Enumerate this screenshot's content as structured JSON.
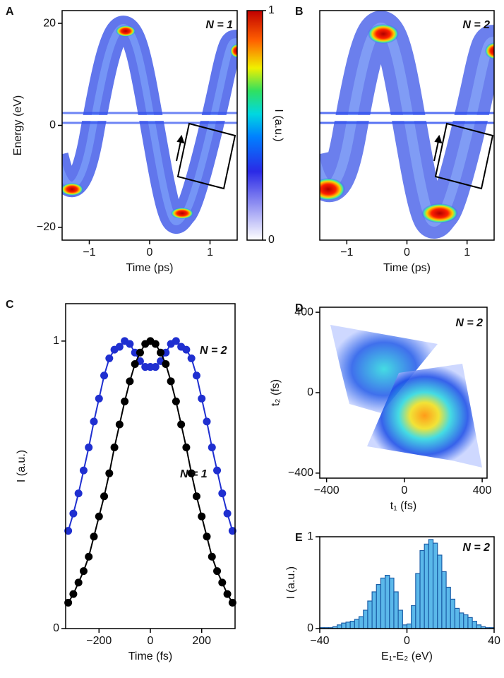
{
  "chart_data": [
    {
      "type": "heatmap",
      "panel": "A",
      "annotation": "N = 1",
      "x_label": "Time (ps)",
      "y_label": "Energy (eV)",
      "xlim": [
        -1.45,
        1.45
      ],
      "xticks": [
        {
          "value": -1,
          "label": "−1"
        },
        0,
        1
      ],
      "ylim": [
        -22.5,
        22.5
      ],
      "yticks": [
        {
          "value": -20,
          "label": "−20"
        },
        0,
        20
      ],
      "colorbar": {
        "label": "I (a.u.)",
        "lim": [
          0,
          1
        ],
        "ticks": [
          0,
          1
        ]
      }
    },
    {
      "type": "heatmap",
      "panel": "B",
      "annotation": "N = 2",
      "x_label": "Time (ps)",
      "xlim": [
        -1.45,
        1.45
      ],
      "xticks": [
        {
          "value": -1,
          "label": "−1"
        },
        0,
        1
      ],
      "ylim": [
        -22.5,
        22.5
      ]
    },
    {
      "type": "line",
      "panel": "C",
      "x_label": "Time (fs)",
      "y_label": "I (a.u.)",
      "xlim": [
        -330,
        330
      ],
      "xticks": [
        {
          "value": -200,
          "label": "−200"
        },
        0,
        200
      ],
      "ylim": [
        0,
        1.13
      ],
      "yticks": [
        0,
        1
      ],
      "x": [
        -320,
        -300,
        -280,
        -260,
        -240,
        -220,
        -200,
        -180,
        -160,
        -140,
        -120,
        -100,
        -80,
        -60,
        -40,
        -20,
        0,
        20,
        40,
        60,
        80,
        100,
        120,
        140,
        160,
        180,
        200,
        220,
        240,
        260,
        280,
        300,
        320
      ],
      "series": [
        {
          "name": "N = 2",
          "color": "#1f2fd0",
          "values": [
            0.34,
            0.4,
            0.47,
            0.55,
            0.63,
            0.72,
            0.8,
            0.88,
            0.94,
            0.97,
            0.98,
            1.0,
            0.99,
            0.96,
            0.93,
            0.91,
            0.91,
            0.91,
            0.93,
            0.96,
            0.99,
            1.0,
            0.98,
            0.97,
            0.94,
            0.88,
            0.8,
            0.72,
            0.63,
            0.55,
            0.47,
            0.4,
            0.34
          ]
        },
        {
          "name": "N = 1",
          "color": "#000000",
          "values": [
            0.09,
            0.12,
            0.16,
            0.2,
            0.25,
            0.32,
            0.39,
            0.46,
            0.54,
            0.63,
            0.71,
            0.79,
            0.86,
            0.92,
            0.96,
            0.99,
            1.0,
            0.99,
            0.96,
            0.92,
            0.86,
            0.79,
            0.71,
            0.63,
            0.54,
            0.46,
            0.39,
            0.32,
            0.25,
            0.2,
            0.16,
            0.12,
            0.09
          ]
        }
      ]
    },
    {
      "type": "heatmap",
      "panel": "D",
      "annotation": "N = 2",
      "x_label": "t₁ (fs)",
      "y_label": "t₂ (fs)",
      "xlim": [
        -435,
        425
      ],
      "xticks": [
        {
          "value": -400,
          "label": "−400"
        },
        0,
        400
      ],
      "ylim": [
        -425,
        425
      ],
      "yticks": [
        {
          "value": -400,
          "label": "−400"
        },
        0,
        400
      ]
    },
    {
      "type": "histogram",
      "panel": "E",
      "annotation": "N = 2",
      "x_label": "E₁-E₂ (eV)",
      "y_label": "I (a.u.)",
      "xlim": [
        -40,
        40
      ],
      "xticks": [
        {
          "value": -40,
          "label": "−40"
        },
        0,
        40
      ],
      "ylim": [
        0,
        1
      ],
      "yticks": [
        0,
        1
      ],
      "bins": [
        -40,
        -38,
        -36,
        -34,
        -32,
        -30,
        -28,
        -26,
        -24,
        -22,
        -20,
        -18,
        -16,
        -14,
        -12,
        -10,
        -8,
        -6,
        -4,
        -2,
        0,
        2,
        4,
        6,
        8,
        10,
        12,
        14,
        16,
        18,
        20,
        22,
        24,
        26,
        28,
        30,
        32,
        34,
        36,
        38,
        40
      ],
      "values": [
        0.01,
        0.01,
        0.01,
        0.02,
        0.04,
        0.06,
        0.07,
        0.08,
        0.1,
        0.13,
        0.2,
        0.3,
        0.4,
        0.48,
        0.55,
        0.58,
        0.55,
        0.4,
        0.2,
        0.04,
        0.05,
        0.25,
        0.6,
        0.85,
        0.92,
        0.97,
        0.93,
        0.8,
        0.62,
        0.45,
        0.32,
        0.22,
        0.17,
        0.15,
        0.12,
        0.08,
        0.04,
        0.02,
        0.01,
        0.01
      ],
      "color": "#5bb8ea",
      "edgecolor": "#1c5fa8"
    }
  ]
}
